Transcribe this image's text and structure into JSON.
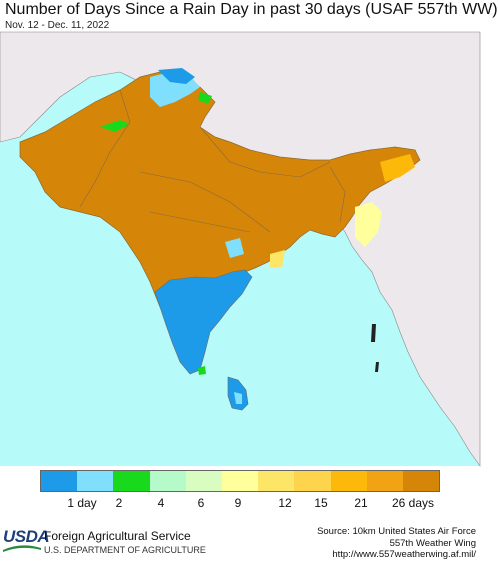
{
  "header": {
    "title": "Number of Days Since a Rain Day in past 30 days (USAF 557th WW)",
    "date_range": "Nov. 12 - Dec. 11, 2022"
  },
  "legend": {
    "colors": [
      "#1e9be8",
      "#7fdffc",
      "#19d91c",
      "#b4fbc9",
      "#d9fdc0",
      "#ffff9c",
      "#fde667",
      "#fdd44c",
      "#fdb90a",
      "#f2a314",
      "#d58508"
    ],
    "labels": [
      {
        "text": "1 day"
      },
      {
        "text": "2"
      },
      {
        "text": "4"
      },
      {
        "text": "6"
      },
      {
        "text": "9"
      },
      {
        "text": "12"
      },
      {
        "text": "15"
      },
      {
        "text": "21"
      },
      {
        "text": "26 days"
      }
    ]
  },
  "footer": {
    "logo_text": "USDA",
    "agency": "Foreign Agricultural Service",
    "department": "U.S. DEPARTMENT OF AGRICULTURE",
    "credit_line1": "Source: 10km United States Air Force",
    "credit_line2": "557th Weather Wing",
    "credit_line3": "http://www.557weatherwing.af.mil/"
  },
  "map_colors": {
    "ocean": "#b7fafa",
    "land_outside": "#ece8ec",
    "border": "#888888",
    "dry": "#d58508"
  }
}
